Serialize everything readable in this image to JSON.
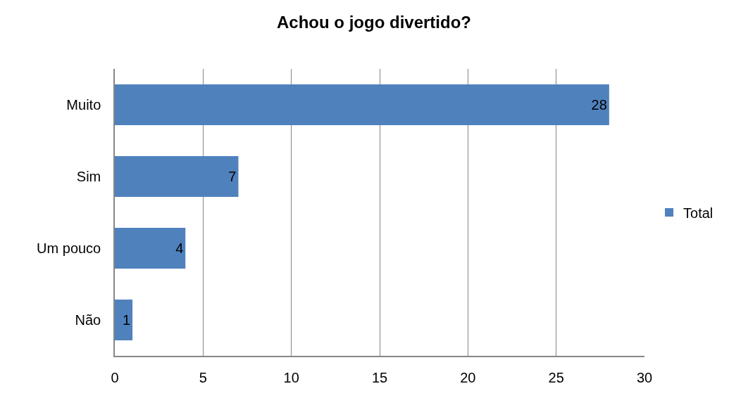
{
  "chart_data": {
    "type": "bar",
    "orientation": "horizontal",
    "title": "Achou o jogo divertido?",
    "categories": [
      "Muito",
      "Sim",
      "Um pouco",
      "Não"
    ],
    "series": [
      {
        "name": "Total",
        "color": "#4f81bd",
        "values": [
          28,
          7,
          4,
          1
        ]
      }
    ],
    "xlim": [
      0,
      30
    ],
    "xticks": [
      0,
      5,
      10,
      15,
      20,
      25,
      30
    ],
    "grid": "x",
    "legend": "right",
    "data_labels": true
  }
}
